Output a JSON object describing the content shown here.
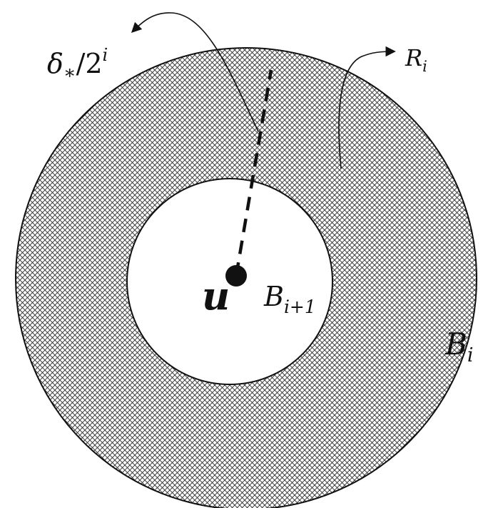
{
  "labels": {
    "center": "u",
    "inner_ball": {
      "base": "B",
      "sub": "i+1"
    },
    "outer_ball": {
      "base": "B",
      "sub": "i"
    },
    "annulus": {
      "base": "R",
      "sub": "i"
    },
    "radius_diff": {
      "delta": "δ",
      "star": "∗",
      "slash": "/2",
      "exp": "i"
    }
  },
  "colors": {
    "stroke": "#111111",
    "hatch": "#2a2a2a",
    "background": "#ffffff"
  }
}
